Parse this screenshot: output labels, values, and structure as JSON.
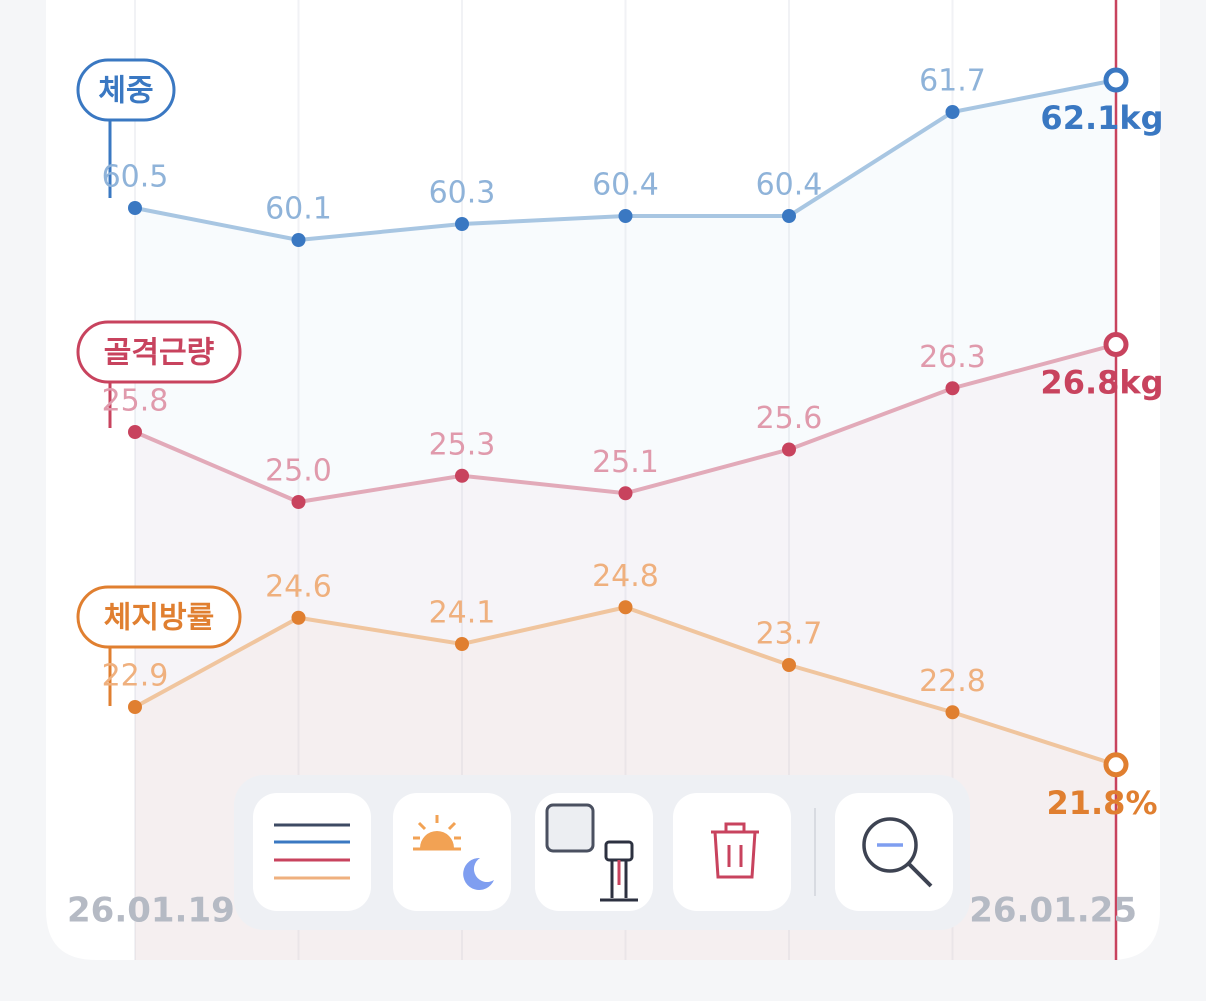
{
  "chart_data": {
    "type": "line",
    "categories": [
      "26.01.19",
      null,
      null,
      null,
      null,
      null,
      "26.01.25"
    ],
    "series": [
      {
        "name": "체중",
        "color": "#3a78c2",
        "line_color": "#a8c6e2",
        "label_color": "#8fb3d9",
        "values": [
          60.5,
          60.1,
          60.3,
          60.4,
          60.4,
          61.7,
          62.1
        ],
        "value_labels": [
          "60.5",
          "60.1",
          "60.3",
          "60.4",
          "60.4",
          "61.7",
          "62.1kg"
        ],
        "ylim": [
          59.6,
          62.4
        ]
      },
      {
        "name": "골격근량",
        "color": "#c8435e",
        "line_color": "#e2aab9",
        "label_color": "#e09aac",
        "values": [
          25.8,
          25.0,
          25.3,
          25.1,
          25.6,
          26.3,
          26.8
        ],
        "value_labels": [
          "25.8",
          "25.0",
          "25.3",
          "25.1",
          "25.6",
          "26.3",
          "26.8kg"
        ],
        "ylim": [
          24.6,
          27.2
        ]
      },
      {
        "name": "체지방률",
        "color": "#e07f30",
        "line_color": "#f0c59e",
        "label_color": "#efb07e",
        "values": [
          22.9,
          24.6,
          24.1,
          24.8,
          23.7,
          22.8,
          21.8
        ],
        "value_labels": [
          "22.9",
          "24.6",
          "24.1",
          "24.8",
          "23.7",
          "22.8",
          "21.8%"
        ],
        "ylim": [
          21.2,
          25.4
        ]
      }
    ]
  }
}
